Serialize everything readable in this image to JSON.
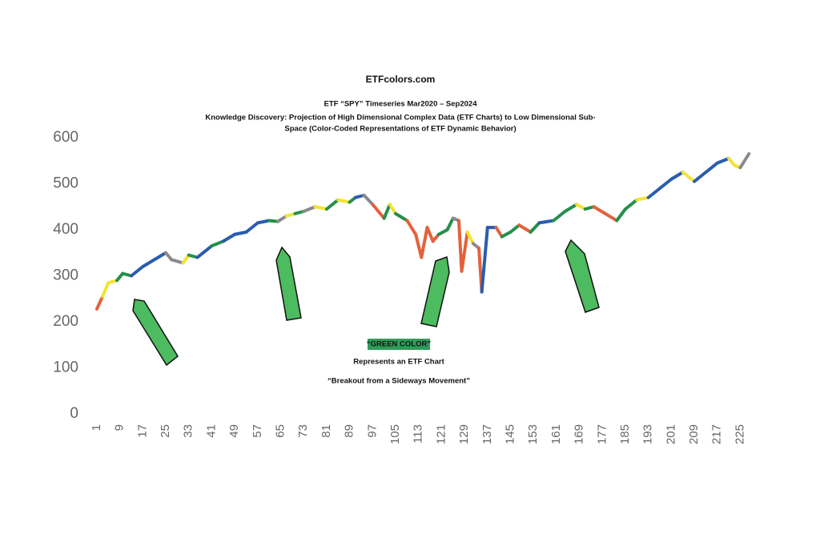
{
  "chart_data": {
    "type": "line",
    "title": "ETFcolors.com",
    "subtitle": "ETF “SPY” Timeseries Mar2020 – Sep2024",
    "description": [
      "Knowledge Discovery: Projection of High Dimensional Complex Data (ETF Charts) to Low Dimensional Sub-",
      "Space (Color-Coded Representations of ETF Dynamic Behavior)"
    ],
    "annotations": [
      "“GREEN COLOR”",
      "Represents an ETF Chart",
      "“Breakout from a Sideways Movement”"
    ],
    "highlight_color": "#2e9d5a",
    "xlim": [
      -1.5,
      231
    ],
    "xticks": [
      1,
      9,
      17,
      25,
      33,
      41,
      49,
      57,
      65,
      73,
      81,
      89,
      97,
      105,
      113,
      121,
      129,
      137,
      145,
      153,
      161,
      169,
      177,
      185,
      193,
      201,
      209,
      217,
      225
    ],
    "ylim": [
      0,
      600
    ],
    "yticks": [
      0,
      100,
      200,
      300,
      400,
      500,
      600
    ],
    "grid": false,
    "series": [
      {
        "x": [
          1,
          3,
          5,
          8,
          10,
          13,
          17,
          21,
          25,
          27,
          31,
          33,
          36,
          41,
          45,
          49,
          53,
          57,
          61,
          64,
          67,
          70,
          73,
          77,
          81,
          85,
          89,
          91,
          94,
          97,
          99,
          101,
          103,
          105,
          109,
          112,
          114,
          116,
          118,
          120,
          123,
          125,
          127,
          128,
          130,
          132,
          134,
          135,
          137,
          140,
          142,
          145,
          148,
          152,
          155,
          160,
          164,
          168,
          171,
          174,
          178,
          182,
          185,
          189,
          193,
          197,
          201,
          205,
          209,
          213,
          217,
          221,
          223,
          225,
          228
        ],
        "values": [
          228,
          255,
          285,
          290,
          305,
          300,
          320,
          335,
          350,
          335,
          328,
          345,
          340,
          365,
          375,
          390,
          395,
          415,
          420,
          418,
          430,
          435,
          440,
          450,
          445,
          465,
          460,
          470,
          475,
          455,
          440,
          425,
          455,
          435,
          420,
          390,
          340,
          405,
          375,
          390,
          400,
          425,
          420,
          310,
          395,
          370,
          360,
          265,
          405,
          405,
          385,
          395,
          410,
          395,
          415,
          420,
          440,
          455,
          445,
          450,
          435,
          420,
          445,
          465,
          470,
          490,
          510,
          525,
          505,
          525,
          545,
          555,
          540,
          535,
          565
        ],
        "colors": [
          "#e2623c",
          "#e2623c",
          "#f3e332",
          "#f3e332",
          "#24904c",
          "#24904c",
          "#2b5cae",
          "#2b5cae",
          "#2b5cae",
          "#8a8a8a",
          "#8a8a8a",
          "#f3e332",
          "#24904c",
          "#2b5cae",
          "#24904c",
          "#2b5cae",
          "#2b5cae",
          "#2b5cae",
          "#2b5cae",
          "#24904c",
          "#8a8a8a",
          "#f3e332",
          "#24904c",
          "#8a8a8a",
          "#f3e332",
          "#24904c",
          "#f3e332",
          "#24904c",
          "#2b5cae",
          "#8a8a8a",
          "#e2623c",
          "#e2623c",
          "#24904c",
          "#f3e332",
          "#24904c",
          "#e2623c",
          "#e2623c",
          "#e2623c",
          "#e2623c",
          "#e2623c",
          "#24904c",
          "#24904c",
          "#8a8a8a",
          "#e2623c",
          "#e2623c",
          "#f3e332",
          "#8a8a8a",
          "#e2623c",
          "#2b5cae",
          "#2b5cae",
          "#e2623c",
          "#24904c",
          "#24904c",
          "#e2623c",
          "#24904c",
          "#2b5cae",
          "#24904c",
          "#24904c",
          "#f3e332",
          "#24904c",
          "#e2623c",
          "#e2623c",
          "#24904c",
          "#24904c",
          "#f3e332",
          "#2b5cae",
          "#2b5cae",
          "#2b5cae",
          "#f3e332",
          "#2b5cae",
          "#2b5cae",
          "#2b5cae",
          "#f3e332",
          "#f3e332",
          "#8a8a8a"
        ]
      }
    ]
  }
}
